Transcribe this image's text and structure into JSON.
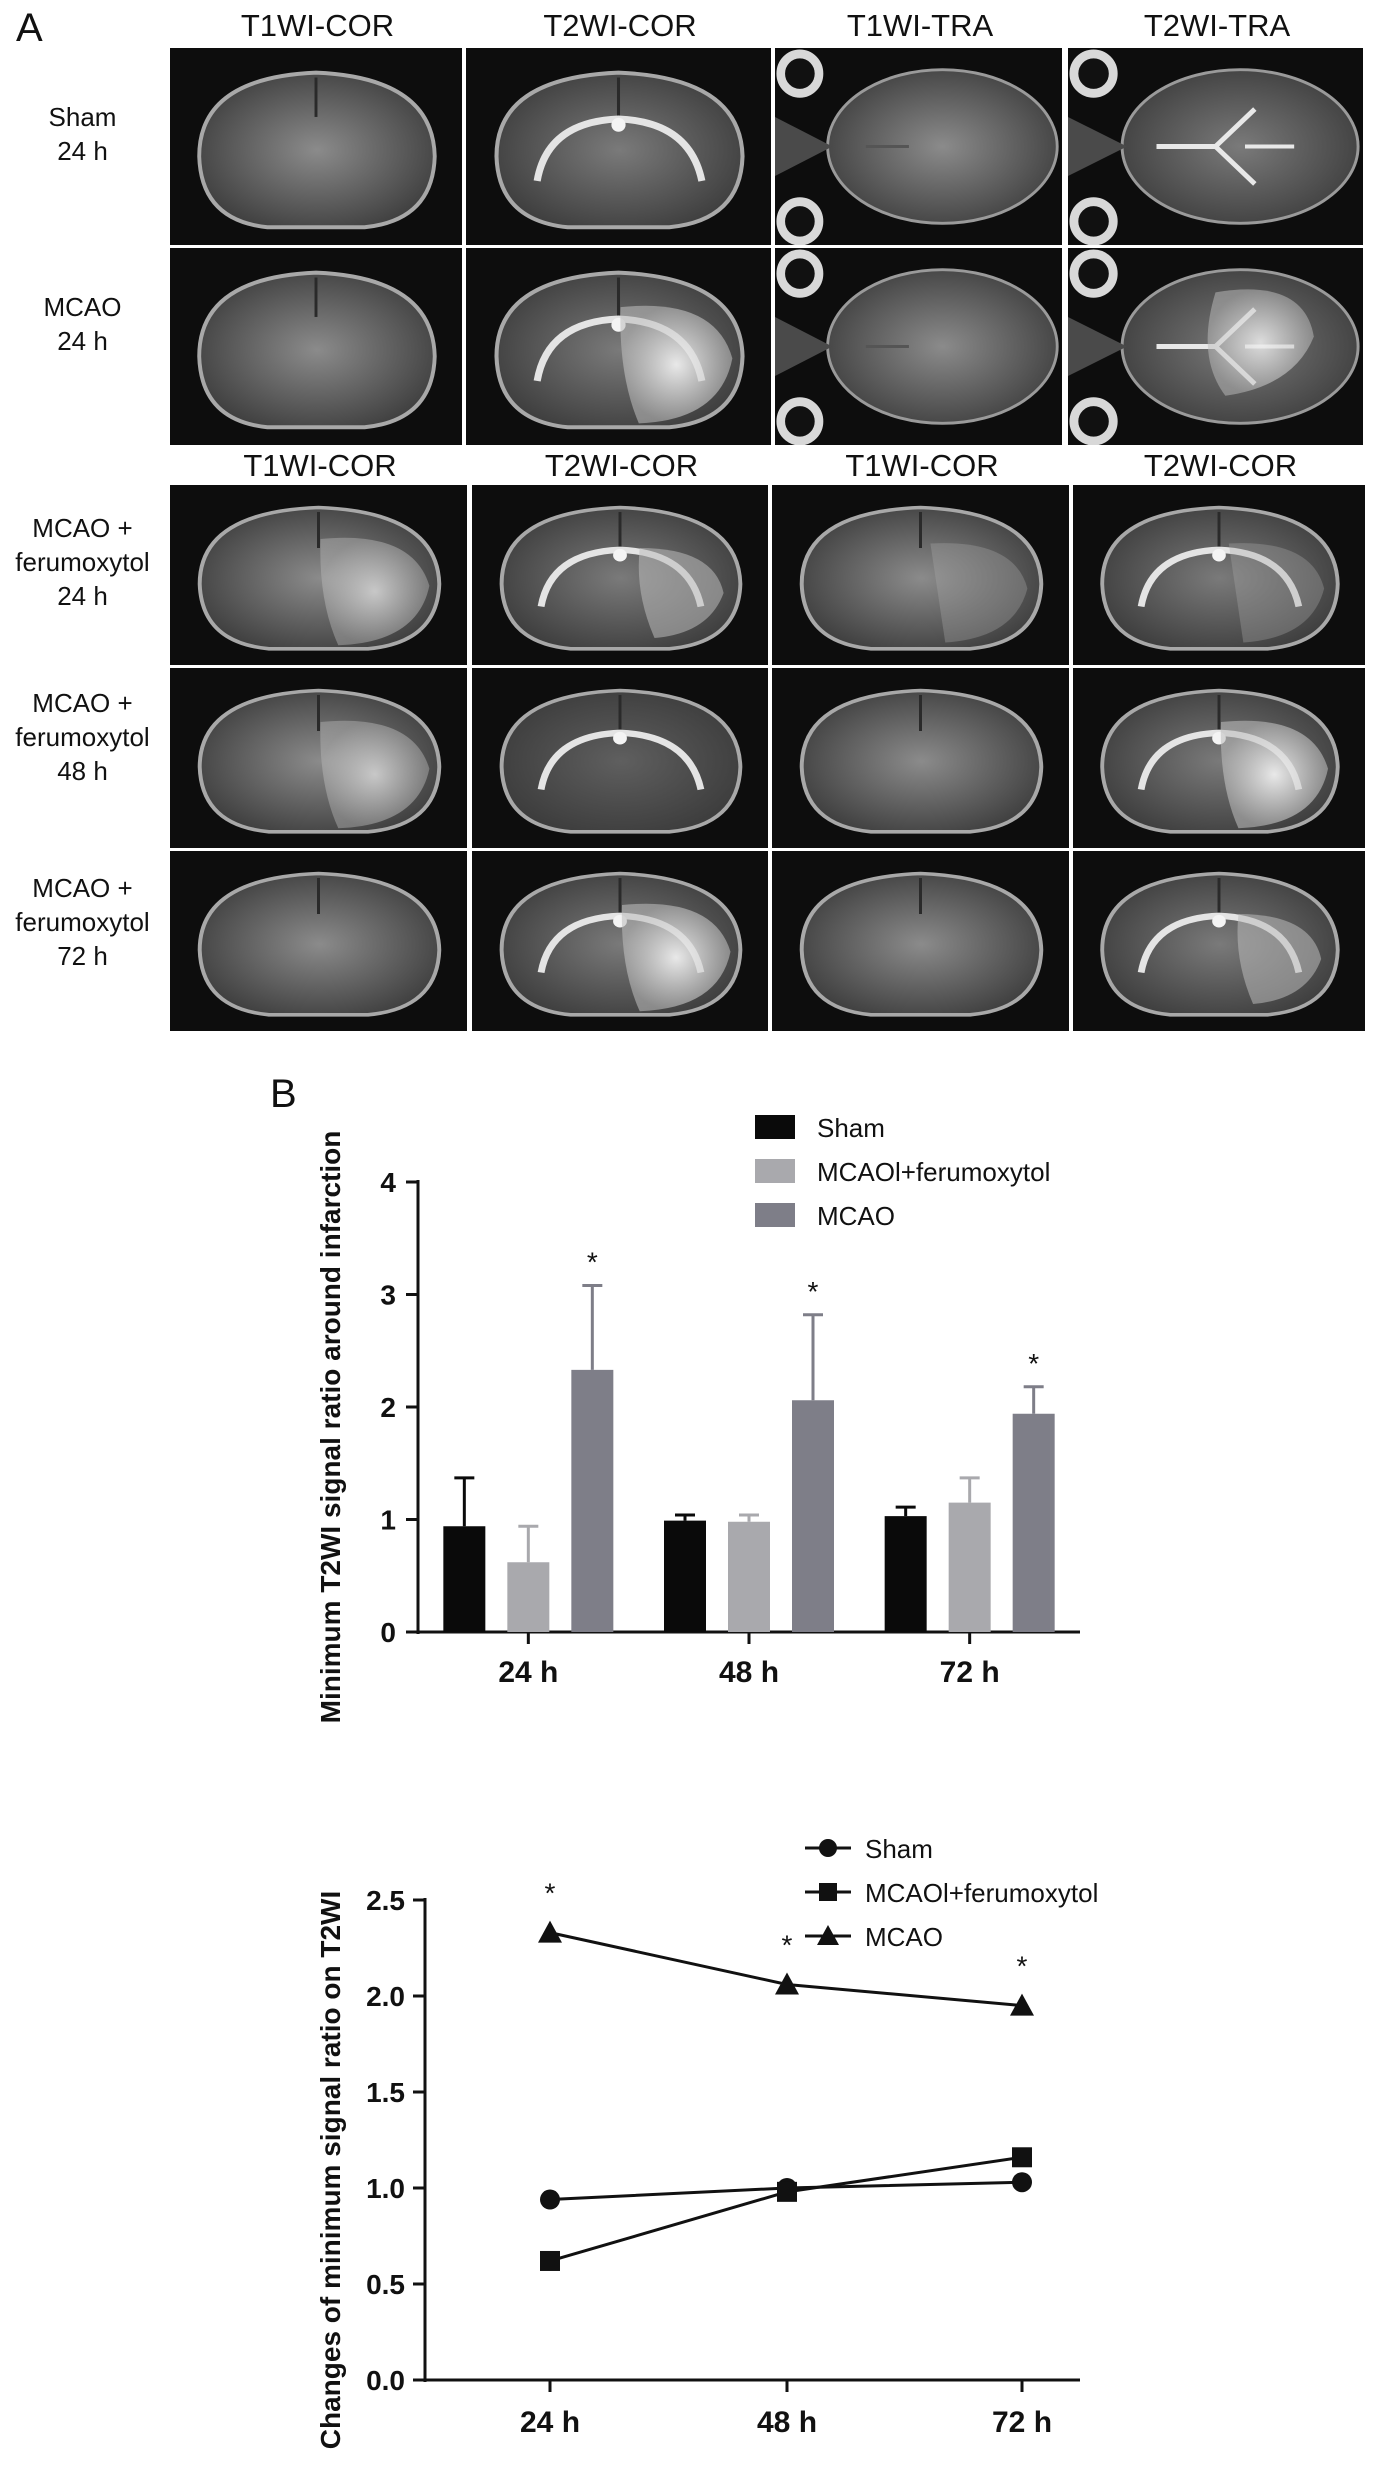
{
  "panel_a": {
    "letter": "A",
    "top_headers": [
      "T1WI-COR",
      "T2WI-COR",
      "T1WI-TRA",
      "T2WI-TRA"
    ],
    "bottom_headers": [
      "T1WI-COR",
      "T2WI-COR",
      "T1WI-COR",
      "T2WI-COR"
    ],
    "row_labels": [
      [
        "Sham",
        "24 h"
      ],
      [
        "MCAO",
        "24 h"
      ],
      [
        "MCAO +",
        "ferumoxytol",
        "24 h"
      ],
      [
        "MCAO +",
        "ferumoxytol",
        "48 h"
      ],
      [
        "MCAO +",
        "ferumoxytol",
        "72 h"
      ]
    ],
    "image_grid": [
      [
        "coronal-t1-plain",
        "coronal-t2-plain",
        "axial-t1-plain",
        "axial-t2-plain"
      ],
      [
        "coronal-t1-plain",
        "coronal-t2-lesion",
        "axial-t1-plain",
        "axial-t2-lesion"
      ],
      [
        "coronal-t1-lesion",
        "coronal-t2-partial",
        "coronal-t1-faint",
        "coronal-t2-faint"
      ],
      [
        "coronal-t1-lesion",
        "coronal-t2-dark",
        "coronal-t1-plain",
        "coronal-t2-lesion"
      ],
      [
        "coronal-t1-plain",
        "coronal-t2-lesion",
        "coronal-t1-plain",
        "coronal-t2-partial"
      ]
    ]
  },
  "panel_b": {
    "letter": "B"
  },
  "chart_data": [
    {
      "type": "bar",
      "title": "",
      "xlabel": "",
      "ylabel": "Minimum T2WI signal ratio around infarction",
      "categories": [
        "24 h",
        "48 h",
        "72 h"
      ],
      "ylim": [
        0,
        4
      ],
      "yticks": [
        0,
        1,
        2,
        3,
        4
      ],
      "legend_position": "top-right",
      "series": [
        {
          "name": "Sham",
          "color": "#0a0a0a",
          "values": [
            0.94,
            0.99,
            1.03
          ],
          "errors": [
            0.43,
            0.05,
            0.08
          ]
        },
        {
          "name": "MCAOl+ferumoxytol",
          "color": "#a9a9ad",
          "values": [
            0.62,
            0.98,
            1.15
          ],
          "errors": [
            0.32,
            0.06,
            0.22
          ]
        },
        {
          "name": "MCAO",
          "color": "#7e7e88",
          "values": [
            2.33,
            2.06,
            1.94
          ],
          "errors": [
            0.75,
            0.76,
            0.24
          ]
        }
      ],
      "annotations": [
        "*",
        "*",
        "*"
      ]
    },
    {
      "type": "line",
      "title": "",
      "xlabel": "",
      "ylabel": "Changes of minimum signal ratio on T2WI",
      "categories": [
        "24 h",
        "48 h",
        "72 h"
      ],
      "ylim": [
        0,
        2.5
      ],
      "yticks": [
        "0.0",
        "0.5",
        "1.0",
        "1.5",
        "2.0",
        "2.5"
      ],
      "legend_position": "top-right",
      "series": [
        {
          "name": "Sham",
          "marker": "circle",
          "values": [
            0.94,
            1.0,
            1.03
          ]
        },
        {
          "name": "MCAOl+ferumoxytol",
          "marker": "square",
          "values": [
            0.62,
            0.98,
            1.16
          ]
        },
        {
          "name": "MCAO",
          "marker": "triangle",
          "values": [
            2.33,
            2.06,
            1.95
          ]
        }
      ],
      "annotations": [
        "*",
        "*",
        "*"
      ]
    }
  ]
}
